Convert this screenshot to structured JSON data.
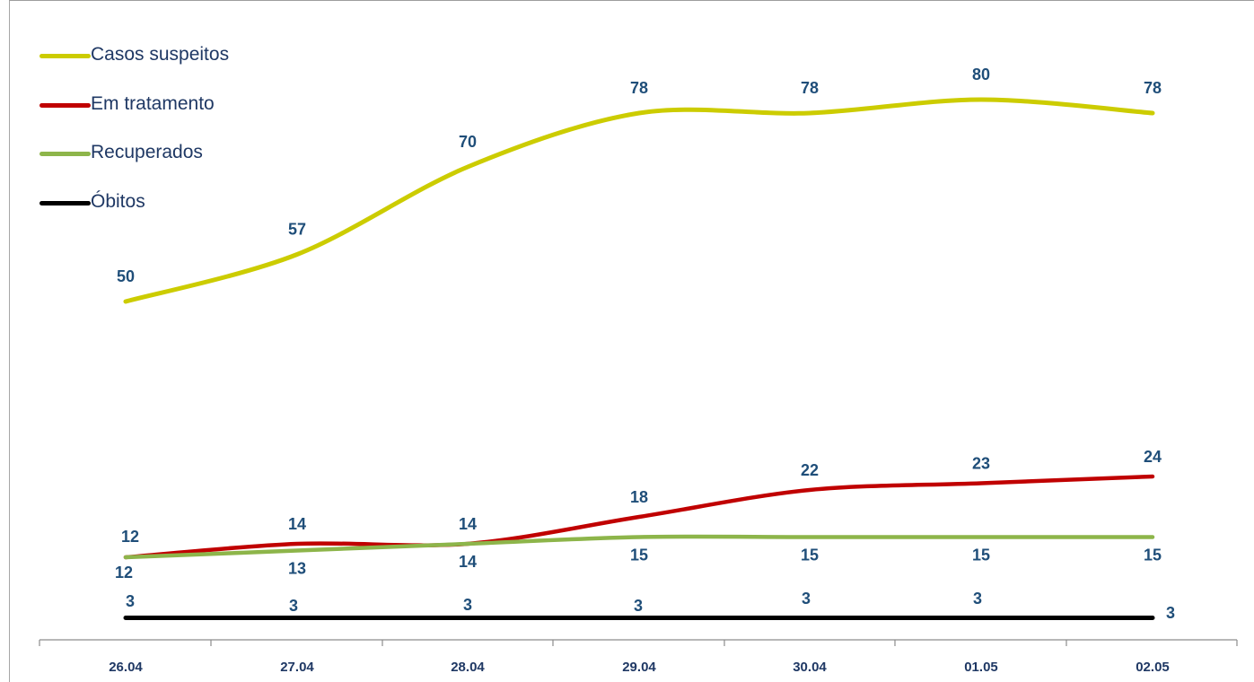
{
  "chart_data": {
    "type": "line",
    "categories": [
      "26.04",
      "27.04",
      "28.04",
      "29.04",
      "30.04",
      "01.05",
      "02.05"
    ],
    "series": [
      {
        "name": "Casos suspeitos",
        "values": [
          50,
          57,
          70,
          78,
          78,
          80,
          78
        ],
        "color": "#cccc00"
      },
      {
        "name": "Em tratamento",
        "values": [
          12,
          14,
          14,
          18,
          22,
          23,
          24
        ],
        "color": "#c00000"
      },
      {
        "name": "Recuperados",
        "values": [
          12,
          13,
          14,
          15,
          15,
          15,
          15
        ],
        "color": "#8db54a"
      },
      {
        "name": "Óbitos",
        "values": [
          3,
          3,
          3,
          3,
          3,
          3,
          3
        ],
        "color": "#000000"
      }
    ],
    "title": "",
    "xlabel": "",
    "ylabel": "",
    "legend_position": "top-left",
    "grid": false,
    "label_color": "#1f4e79"
  }
}
